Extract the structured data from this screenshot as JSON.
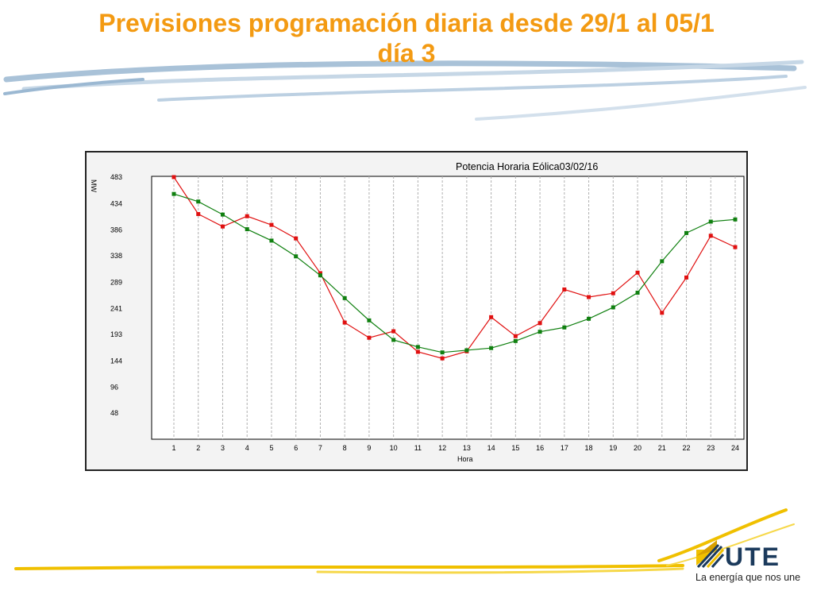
{
  "slide": {
    "title_line1": "Previsiones programación diaria desde 29/1 al 05/1",
    "title_line2": "día 3"
  },
  "brand": {
    "logo_text": "UTE",
    "tagline": "La energía que nos une",
    "colors": {
      "title": "#f39a12",
      "swoosh": "#a9c2d8",
      "gold": "#f0c000",
      "logo_dark": "#1b3a5c"
    }
  },
  "chart_data": {
    "type": "line",
    "title": "Potencia Horaria Eólica03/02/16",
    "xlabel": "Hora",
    "ylabel": "MW",
    "x": [
      1,
      2,
      3,
      4,
      5,
      6,
      7,
      8,
      9,
      10,
      11,
      12,
      13,
      14,
      15,
      16,
      17,
      18,
      19,
      20,
      21,
      22,
      23,
      24
    ],
    "y_ticks": [
      48,
      96,
      144,
      193,
      241,
      289,
      338,
      386,
      434,
      483
    ],
    "ylim": [
      0,
      483
    ],
    "grid": "vertical",
    "series": [
      {
        "color": "#e01010",
        "values": [
          483,
          415,
          392,
          411,
          395,
          370,
          306,
          215,
          187,
          199,
          161,
          149,
          162,
          225,
          190,
          214,
          276,
          262,
          269,
          307,
          233,
          298,
          375,
          354
        ]
      },
      {
        "color": "#108010",
        "values": [
          452,
          438,
          414,
          387,
          366,
          337,
          302,
          260,
          219,
          183,
          170,
          160,
          164,
          168,
          181,
          198,
          206,
          222,
          243,
          270,
          328,
          380,
          401,
          405
        ]
      }
    ]
  }
}
